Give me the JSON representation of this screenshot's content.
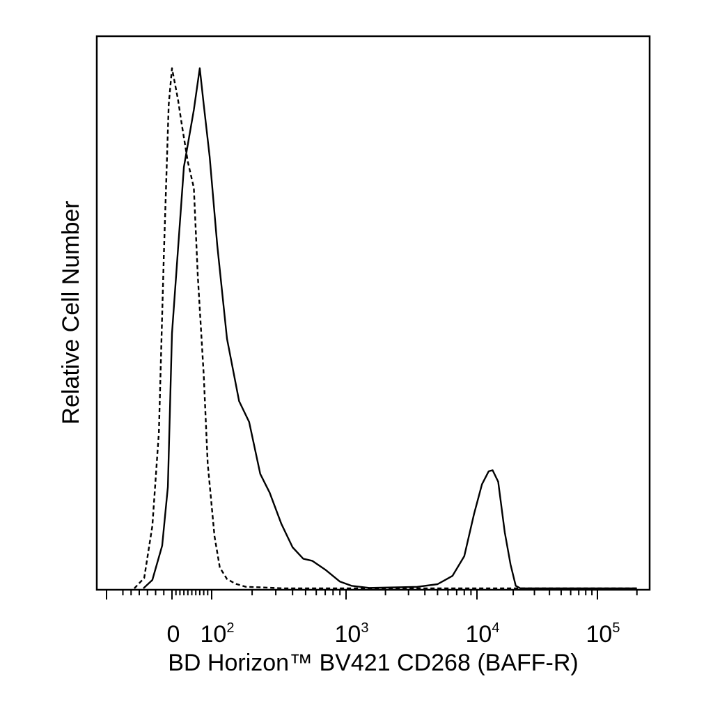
{
  "chart_data": {
    "type": "line",
    "title": "",
    "xlabel": "BD Horizon™ BV421 CD268 (BAFF-R)",
    "ylabel": "Relative Cell Number",
    "x_scale": "biexponential",
    "xlim": [
      -400,
      250000
    ],
    "ylim": [
      0,
      1
    ],
    "grid": false,
    "legend": "none",
    "tick_labels": [
      {
        "x": 0,
        "base": "0",
        "exp": ""
      },
      {
        "x": 100,
        "base": "10",
        "exp": "2"
      },
      {
        "x": 1000,
        "base": "10",
        "exp": "3"
      },
      {
        "x": 10000,
        "base": "10",
        "exp": "4"
      },
      {
        "x": 100000,
        "base": "10",
        "exp": "5"
      }
    ],
    "series": [
      {
        "style": "solid",
        "color": "#000000",
        "x": [
          -175,
          -120,
          -60,
          -25,
          0,
          30,
          55,
          70,
          80,
          95,
          110,
          130,
          160,
          190,
          230,
          270,
          330,
          400,
          480,
          560,
          700,
          900,
          1100,
          1500,
          2500,
          3500,
          5000,
          6500,
          8000,
          9500,
          11000,
          12500,
          13500,
          15000,
          17000,
          19000,
          21000,
          23000,
          30000,
          60000,
          100000,
          200000
        ],
        "y": [
          0.0,
          0.016,
          0.082,
          0.195,
          0.49,
          0.81,
          0.92,
          1.0,
          0.93,
          0.83,
          0.66,
          0.48,
          0.36,
          0.32,
          0.22,
          0.184,
          0.124,
          0.079,
          0.057,
          0.053,
          0.036,
          0.013,
          0.005,
          0.001,
          0.002,
          0.003,
          0.008,
          0.024,
          0.062,
          0.143,
          0.2,
          0.225,
          0.227,
          0.205,
          0.108,
          0.046,
          0.005,
          0.0,
          0.0,
          0.0,
          0.0,
          0.0
        ]
      },
      {
        "style": "dashed",
        "color": "#000000",
        "x": [
          -230,
          -170,
          -120,
          -80,
          -50,
          -20,
          0,
          15,
          25,
          40,
          55,
          65,
          80,
          90,
          105,
          115,
          130,
          150,
          180,
          230,
          350,
          1000,
          5000,
          20000,
          60000,
          200000
        ],
        "y": [
          0.0,
          0.02,
          0.12,
          0.3,
          0.64,
          0.93,
          1.0,
          0.94,
          0.89,
          0.82,
          0.77,
          0.6,
          0.41,
          0.24,
          0.1,
          0.04,
          0.018,
          0.009,
          0.003,
          0.002,
          0.0,
          0.0,
          0.0,
          0.0,
          0.0,
          0.0
        ]
      }
    ]
  }
}
